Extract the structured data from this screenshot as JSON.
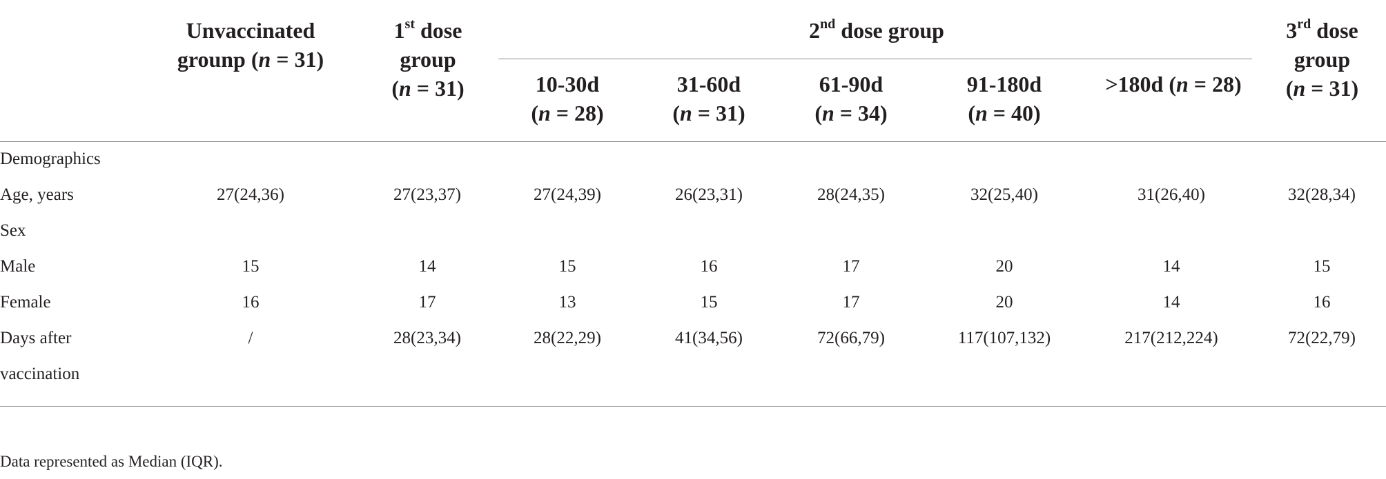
{
  "header": {
    "col1": {
      "line1": "Unvaccinated",
      "line2": "grounp (",
      "n": "n",
      "eq": " = 31)"
    },
    "col2": {
      "line1a": "1",
      "sup": "st",
      "line1b": " dose",
      "line2": "group",
      "line3a": "(",
      "n": "n",
      "line3b": " = 31)"
    },
    "group2": {
      "text_a": "2",
      "sup": "nd",
      "text_b": " dose group"
    },
    "sub": [
      {
        "line1": "10-30d",
        "line2a": "(",
        "n": "n",
        "line2b": " = 28)"
      },
      {
        "line1": "31-60d",
        "line2a": "(",
        "n": "n",
        "line2b": " = 31)"
      },
      {
        "line1": "61-90d",
        "line2a": "(",
        "n": "n",
        "line2b": " = 34)"
      },
      {
        "line1": "91-180d",
        "line2a": "(",
        "n": "n",
        "line2b": " = 40)"
      },
      {
        "line1a": ">180d (",
        "n": "n",
        "line1b": " = 28)"
      }
    ],
    "col3": {
      "line1a": "3",
      "sup": "rd",
      "line1b": " dose",
      "line2": "group",
      "line3a": "(",
      "n": "n",
      "line3b": " = 31)"
    }
  },
  "rows": [
    {
      "label": "Demographics",
      "values": []
    },
    {
      "label": "Age, years",
      "values": [
        "27(24,36)",
        "27(23,37)",
        "27(24,39)",
        "26(23,31)",
        "28(24,35)",
        "32(25,40)",
        "31(26,40)",
        "32(28,34)"
      ]
    },
    {
      "label": "Sex",
      "values": []
    },
    {
      "label": "Male",
      "values": [
        "15",
        "14",
        "15",
        "16",
        "17",
        "20",
        "14",
        "15"
      ]
    },
    {
      "label": "Female",
      "values": [
        "16",
        "17",
        "13",
        "15",
        "17",
        "20",
        "14",
        "16"
      ]
    },
    {
      "label": "Days after",
      "values": [
        "/",
        "28(23,34)",
        "28(22,29)",
        "41(34,56)",
        "72(66,79)",
        "117(107,132)",
        "217(212,224)",
        "72(22,79)"
      ]
    },
    {
      "label": "vaccination",
      "values": []
    }
  ],
  "footnote": "Data represented as Median (IQR)."
}
